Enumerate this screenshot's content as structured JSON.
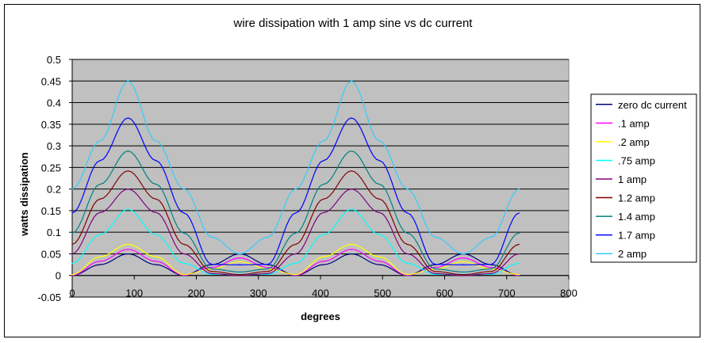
{
  "chart_data": {
    "type": "line",
    "title": "wire dissipation with 1 amp sine vs dc current",
    "xlabel": "degrees",
    "ylabel": "watts dissipation",
    "xlim": [
      0,
      800
    ],
    "ylim": [
      -0.05,
      0.5
    ],
    "x_ticks": [
      "0",
      "100",
      "200",
      "300",
      "400",
      "500",
      "600",
      "700",
      "800"
    ],
    "y_ticks": [
      "-0.05",
      "0",
      "0.05",
      "0.1",
      "0.15",
      "0.2",
      "0.25",
      "0.3",
      "0.35",
      "0.4",
      "0.45",
      "0.5"
    ],
    "grid": true,
    "plot_background": "#c0c0c0",
    "legend_position": "right",
    "x_sample": {
      "start": 0,
      "end": 720,
      "step": 5
    },
    "series": [
      {
        "name": "zero dc current",
        "color": "#000080",
        "x": [
          0,
          45,
          90,
          135,
          180,
          225,
          270,
          315,
          360,
          405,
          450,
          495,
          540,
          585,
          630,
          675,
          720
        ],
        "values": [
          0,
          0.025,
          0.05,
          0.025,
          0,
          0.025,
          0.05,
          0.025,
          0,
          0.025,
          0.05,
          0.025,
          0,
          0.025,
          0.05,
          0.025,
          0
        ]
      },
      {
        "name": ".1 amp",
        "color": "#ff00ff",
        "x": [
          0,
          45,
          90,
          135,
          180,
          225,
          270,
          315,
          360,
          405,
          450,
          495,
          540,
          585,
          630,
          675,
          720
        ],
        "values": [
          0.0005,
          0.0327,
          0.0605,
          0.0327,
          0.0005,
          0.0185,
          0.0405,
          0.0185,
          0.0005,
          0.0327,
          0.0605,
          0.0327,
          0.0005,
          0.0185,
          0.0405,
          0.0185,
          0.0005
        ]
      },
      {
        "name": ".2 amp",
        "color": "#ffff00",
        "x": [
          0,
          45,
          90,
          135,
          180,
          225,
          270,
          315,
          360,
          405,
          450,
          495,
          540,
          585,
          630,
          675,
          720
        ],
        "values": [
          0.002,
          0.0433,
          0.072,
          0.0433,
          0.002,
          0.015,
          0.032,
          0.015,
          0.002,
          0.0433,
          0.072,
          0.0433,
          0.002,
          0.015,
          0.032,
          0.015,
          0.002
        ]
      },
      {
        "name": ".75 amp",
        "color": "#00ffff",
        "x": [
          0,
          45,
          90,
          135,
          180,
          225,
          270,
          315,
          360,
          405,
          450,
          495,
          540,
          585,
          630,
          675,
          720
        ],
        "values": [
          0.028,
          0.0945,
          0.153,
          0.0945,
          0.028,
          0.0025,
          0.003,
          0.0025,
          0.028,
          0.0945,
          0.153,
          0.0945,
          0.028,
          0.0025,
          0.003,
          0.0025,
          0.028
        ]
      },
      {
        "name": "1 amp",
        "color": "#800080",
        "x": [
          0,
          45,
          90,
          135,
          180,
          225,
          270,
          315,
          360,
          405,
          450,
          495,
          540,
          585,
          630,
          675,
          720
        ],
        "values": [
          0.05,
          0.1457,
          0.2,
          0.1457,
          0.05,
          0.0043,
          0,
          0.0043,
          0.05,
          0.1457,
          0.2,
          0.1457,
          0.05,
          0.0043,
          0,
          0.0043,
          0.05
        ]
      },
      {
        "name": "1.2 amp",
        "color": "#800000",
        "x": [
          0,
          45,
          90,
          135,
          180,
          225,
          270,
          315,
          360,
          405,
          450,
          495,
          540,
          585,
          630,
          675,
          720
        ],
        "values": [
          0.072,
          0.1768,
          0.242,
          0.1768,
          0.072,
          0.0091,
          0.002,
          0.0091,
          0.072,
          0.1768,
          0.242,
          0.1768,
          0.072,
          0.0091,
          0.002,
          0.0091,
          0.072
        ]
      },
      {
        "name": "1.4 amp",
        "color": "#008080",
        "x": [
          0,
          45,
          90,
          135,
          180,
          225,
          270,
          315,
          360,
          405,
          450,
          495,
          540,
          585,
          630,
          675,
          720
        ],
        "values": [
          0.098,
          0.2112,
          0.288,
          0.2112,
          0.098,
          0.0151,
          0.008,
          0.0151,
          0.098,
          0.2112,
          0.288,
          0.2112,
          0.098,
          0.0151,
          0.008,
          0.0151,
          0.098
        ]
      },
      {
        "name": "1.7 amp",
        "color": "#0000ff",
        "x": [
          0,
          45,
          90,
          135,
          180,
          225,
          270,
          315,
          360,
          405,
          450,
          495,
          540,
          585,
          630,
          675,
          720
        ],
        "values": [
          0.1445,
          0.2659,
          0.3645,
          0.2659,
          0.1445,
          0.0256,
          0.0245,
          0.0256,
          0.1445,
          0.2659,
          0.3645,
          0.2659,
          0.1445,
          0.0256,
          0.0245,
          0.0256,
          0.1445
        ]
      },
      {
        "name": "2 amp",
        "color": "#33ccff",
        "x": [
          0,
          45,
          90,
          135,
          180,
          225,
          270,
          315,
          360,
          405,
          450,
          495,
          540,
          585,
          630,
          675,
          720
        ],
        "values": [
          0.2,
          0.3114,
          0.45,
          0.3114,
          0.2,
          0.0886,
          0.05,
          0.0886,
          0.2,
          0.3114,
          0.45,
          0.3114,
          0.2,
          0.0886,
          0.05,
          0.0886,
          0.2
        ]
      }
    ]
  }
}
